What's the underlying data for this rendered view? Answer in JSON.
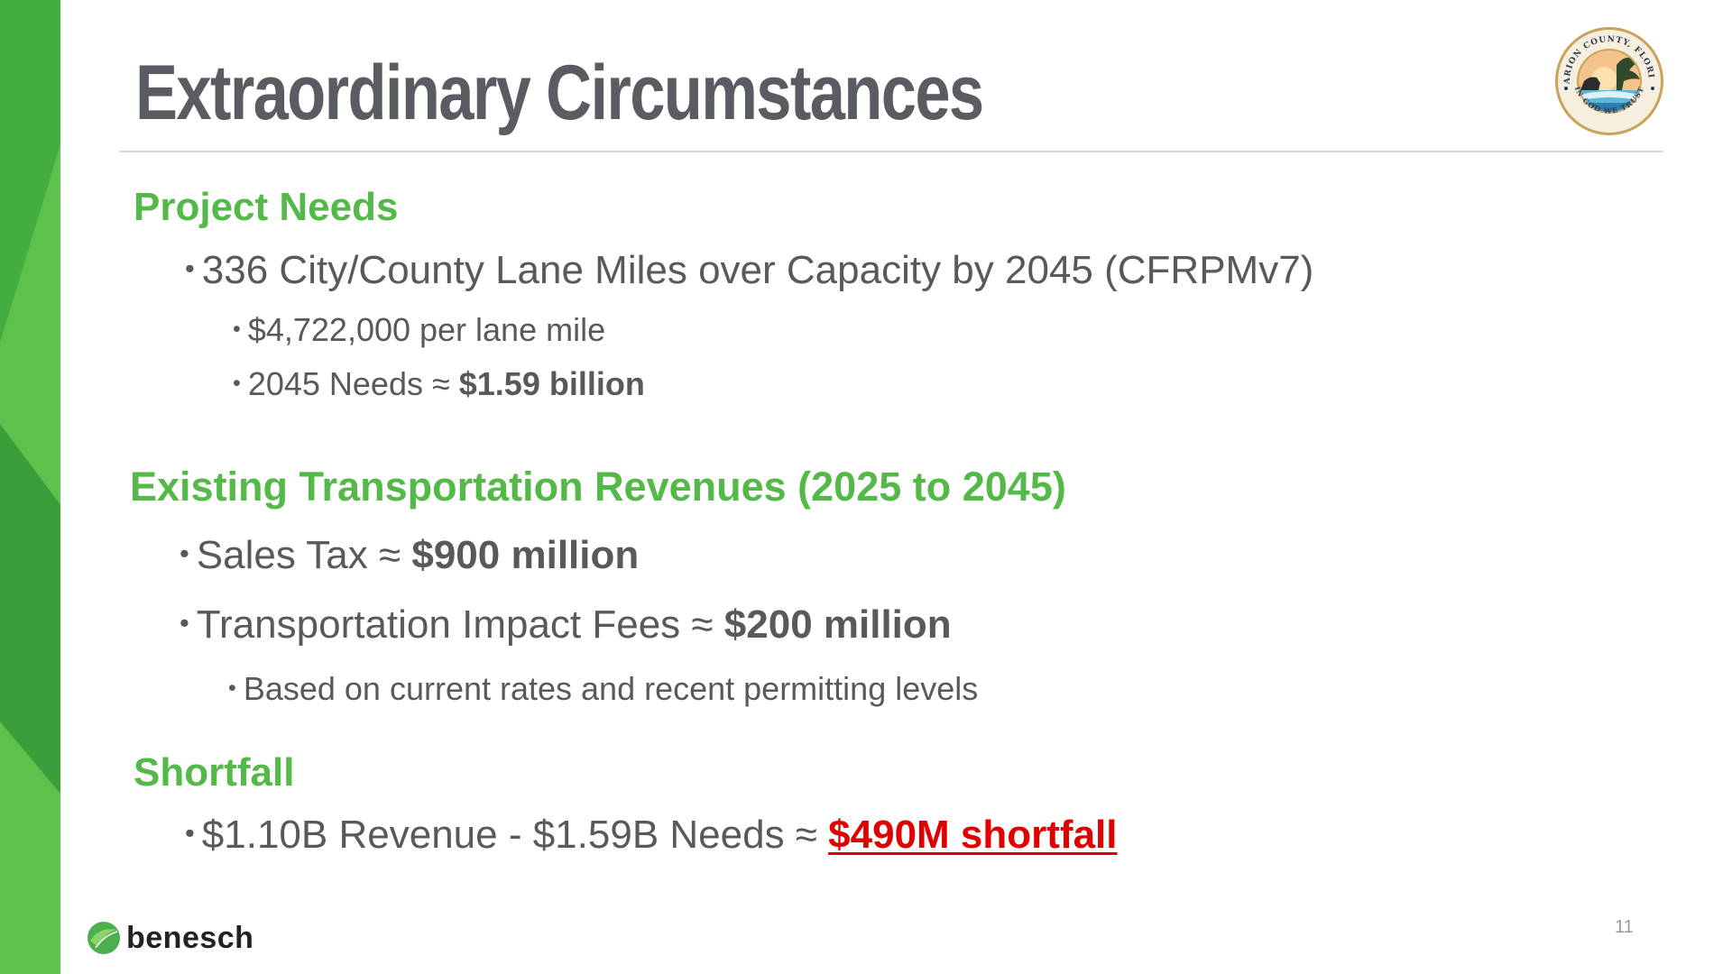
{
  "title": "Extraordinary Circumstances",
  "colors": {
    "heading_green": "#54b948",
    "band_green_dark": "#3aa63c",
    "band_green_light": "#5cc24c",
    "body_gray": "#595959",
    "title_gray": "#595c60",
    "shortfall_red": "#e00000"
  },
  "seal": {
    "icon": "marion-county-seal-icon",
    "ring_text": "MARION COUNTY, FLORIDA",
    "motto": "IN GOD WE TRUST"
  },
  "sections": [
    {
      "heading": "Project Needs",
      "bullets": [
        {
          "level": 1,
          "text": "336 City/County Lane Miles over Capacity by 2045 (CFRPMv7)",
          "bold": ""
        },
        {
          "level": 2,
          "text": "$4,722,000 per lane mile",
          "bold": ""
        },
        {
          "level": 2,
          "text": "2045 Needs ≈ ",
          "bold": "$1.59 billion"
        }
      ]
    },
    {
      "heading": "Existing Transportation Revenues (2025 to 2045)",
      "bullets": [
        {
          "level": 1,
          "text": "Sales Tax ≈ ",
          "bold": "$900 million"
        },
        {
          "level": 1,
          "text": "Transportation Impact Fees ≈ ",
          "bold": "$200 million"
        },
        {
          "level": 2,
          "text": "Based on current rates and recent permitting levels",
          "bold": ""
        }
      ]
    },
    {
      "heading": "Shortfall",
      "bullets": [
        {
          "level": 1,
          "text": "$1.10B Revenue - $1.59B Needs ≈ ",
          "highlight": "$490M shortfall"
        }
      ]
    }
  ],
  "bullet_glyph": "•",
  "footer": {
    "logo_icon": "benesch-leaf-icon",
    "logo_text": "benesch",
    "page_number": "11"
  }
}
